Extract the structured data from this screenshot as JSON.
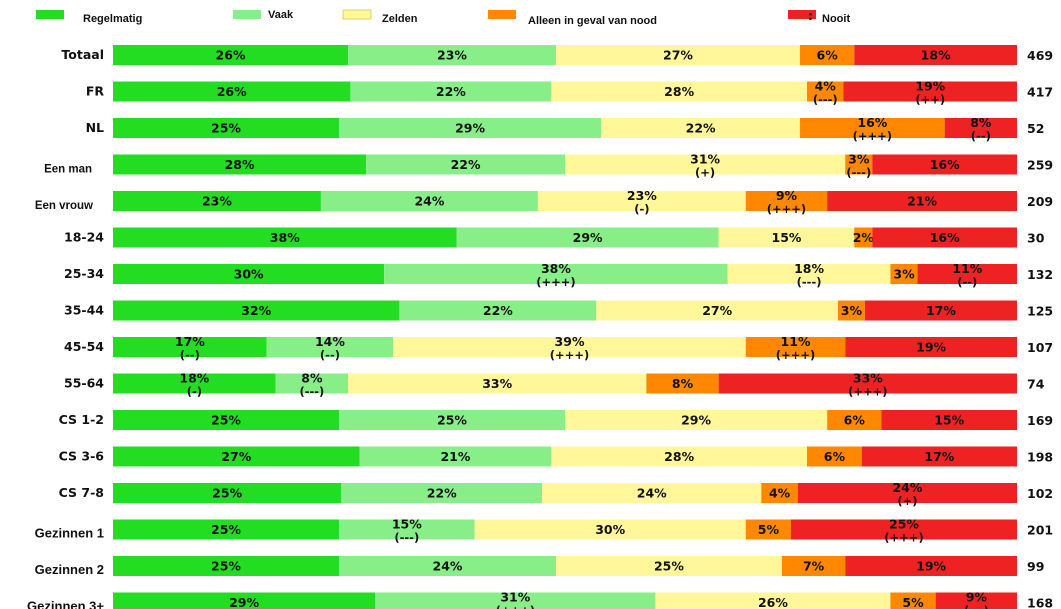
{
  "chart_data": {
    "type": "bar",
    "orientation": "horizontal",
    "stacked": true,
    "legend": {
      "placement": "top"
    },
    "series": [
      {
        "name": "Regelmatig",
        "color": "#22DD22"
      },
      {
        "name": "Vaak",
        "color": "#88EE88"
      },
      {
        "name": "Zelden",
        "color": "#FFF799"
      },
      {
        "name": "Alleen in geval van nood",
        "color": "#FF8800"
      },
      {
        "name": "Nooit",
        "color": "#EE2222"
      }
    ],
    "legend_suffix": {
      "4": ":"
    },
    "rows": [
      {
        "label": "Totaal",
        "n": "469",
        "values": [
          26,
          23,
          27,
          6,
          18
        ],
        "sig": [
          "",
          "",
          "",
          "",
          ""
        ]
      },
      {
        "label": "FR",
        "n": "417",
        "values": [
          26,
          22,
          28,
          4,
          19
        ],
        "sig": [
          "",
          "",
          "",
          "(---)",
          "(++)"
        ]
      },
      {
        "label": "NL",
        "n": "52",
        "values": [
          25,
          29,
          22,
          16,
          8
        ],
        "sig": [
          "",
          "",
          "",
          "(+++)",
          "(--)"
        ]
      },
      {
        "label": "Een man",
        "n": "259",
        "values": [
          28,
          22,
          31,
          3,
          16
        ],
        "sig": [
          "",
          "",
          "(+)",
          "(---)",
          ""
        ]
      },
      {
        "label": "Een vrouw",
        "n": "209",
        "values": [
          23,
          24,
          23,
          9,
          21
        ],
        "sig": [
          "",
          "",
          "(-)",
          "(+++)",
          ""
        ]
      },
      {
        "label": "18-24",
        "n": "30",
        "values": [
          38,
          29,
          15,
          2,
          16
        ],
        "sig": [
          "",
          "",
          "",
          "",
          ""
        ]
      },
      {
        "label": "25-34",
        "n": "132",
        "values": [
          30,
          38,
          18,
          3,
          11
        ],
        "sig": [
          "",
          "(+++)",
          "(---)",
          "",
          "(--)"
        ]
      },
      {
        "label": "35-44",
        "n": "125",
        "values": [
          32,
          22,
          27,
          3,
          17
        ],
        "sig": [
          "",
          "",
          "",
          "",
          ""
        ]
      },
      {
        "label": "45-54",
        "n": "107",
        "values": [
          17,
          14,
          39,
          11,
          19
        ],
        "sig": [
          "(--)",
          "(--)",
          "(+++)",
          "(+++)",
          ""
        ]
      },
      {
        "label": "55-64",
        "n": "74",
        "values": [
          18,
          8,
          33,
          8,
          33
        ],
        "sig": [
          "(-)",
          "(---)",
          "",
          "",
          "(+++)"
        ]
      },
      {
        "label": "CS 1-2",
        "n": "169",
        "values": [
          25,
          25,
          29,
          6,
          15
        ],
        "sig": [
          "",
          "",
          "",
          "",
          ""
        ]
      },
      {
        "label": "CS 3-6",
        "n": "198",
        "values": [
          27,
          21,
          28,
          6,
          17
        ],
        "sig": [
          "",
          "",
          "",
          "",
          ""
        ]
      },
      {
        "label": "CS 7-8",
        "n": "102",
        "values": [
          25,
          22,
          24,
          4,
          24
        ],
        "sig": [
          "",
          "",
          "",
          "",
          "(+)"
        ]
      },
      {
        "label": "Gezinnen 1",
        "n": "201",
        "values": [
          25,
          15,
          30,
          5,
          25
        ],
        "sig": [
          "",
          "(---)",
          "",
          "",
          "(+++)"
        ]
      },
      {
        "label": "Gezinnen 2",
        "n": "99",
        "values": [
          25,
          24,
          25,
          7,
          19
        ],
        "sig": [
          "",
          "",
          "",
          "",
          ""
        ]
      },
      {
        "label": "Gezinnen 3+",
        "n": "168",
        "values": [
          29,
          31,
          26,
          5,
          9
        ],
        "sig": [
          "",
          "(+++)",
          "",
          "",
          "(---)"
        ]
      }
    ],
    "value_suffix": "%"
  }
}
